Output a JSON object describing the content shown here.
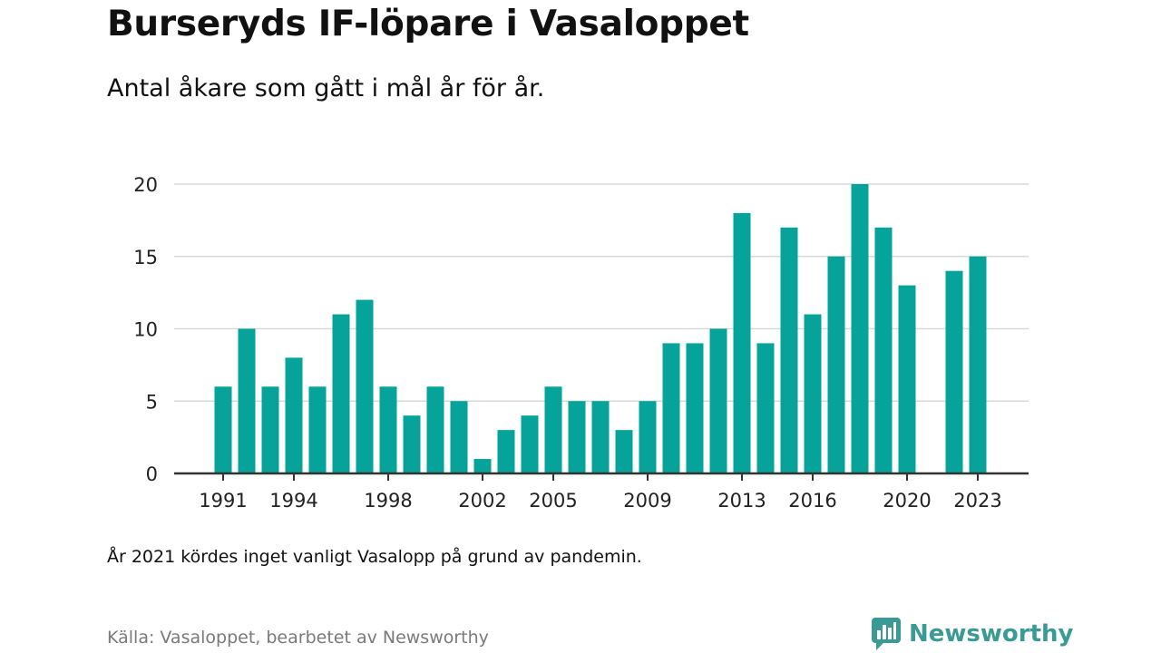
{
  "title": "Burseryds IF-löpare i Vasaloppet",
  "subtitle": "Antal åkare som gått i mål år för år.",
  "note": "År 2021 kördes inget vanligt Vasalopp på grund av pandemin.",
  "source": "Källa: Vasaloppet, bearbetet av Newsworthy",
  "brand": {
    "name": "Newsworthy",
    "icon": "newsworthy-logo-icon",
    "color": "#3a9a96"
  },
  "colors": {
    "bar": "#05a39a",
    "grid": "#d9d9d9",
    "axis": "#333333"
  },
  "chart_data": {
    "type": "bar",
    "x": [
      1991,
      1992,
      1993,
      1994,
      1995,
      1996,
      1997,
      1998,
      1999,
      2000,
      2001,
      2002,
      2003,
      2004,
      2005,
      2006,
      2007,
      2008,
      2009,
      2010,
      2011,
      2012,
      2013,
      2014,
      2015,
      2016,
      2017,
      2018,
      2019,
      2020,
      2021,
      2022,
      2023
    ],
    "values": [
      6,
      10,
      6,
      8,
      6,
      11,
      12,
      6,
      4,
      6,
      5,
      1,
      3,
      4,
      6,
      5,
      5,
      3,
      5,
      9,
      9,
      10,
      18,
      9,
      17,
      11,
      15,
      20,
      17,
      13,
      null,
      14,
      15
    ],
    "x_ticks": [
      "1991",
      "1994",
      "1998",
      "2002",
      "2005",
      "2009",
      "2013",
      "2016",
      "2020",
      "2023"
    ],
    "y_ticks": [
      "0",
      "5",
      "10",
      "15",
      "20"
    ],
    "ylim": [
      0,
      20
    ],
    "grid": true,
    "legend": "none"
  }
}
